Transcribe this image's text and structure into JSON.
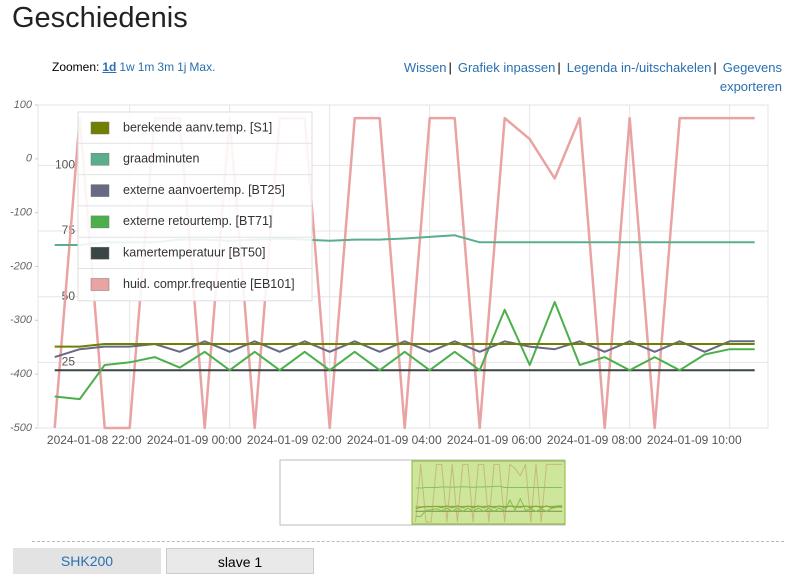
{
  "header": {
    "title": "Geschiedenis"
  },
  "zoom": {
    "label": "Zoomen:",
    "options": [
      "1d",
      "1w",
      "1m",
      "3m",
      "1j",
      "Max."
    ]
  },
  "actions": {
    "items": [
      "Wissen",
      "Grafiek inpassen",
      "Legenda in-/uitschakelen",
      "Gegevens exporteren"
    ],
    "separator": "|"
  },
  "chart_data": {
    "type": "line",
    "x": [
      "2024-01-08 20:30",
      "2024-01-08 21:00",
      "2024-01-08 21:30",
      "2024-01-08 22:00",
      "2024-01-08 22:30",
      "2024-01-08 23:00",
      "2024-01-08 23:30",
      "2024-01-09 00:00",
      "2024-01-09 00:30",
      "2024-01-09 01:00",
      "2024-01-09 01:30",
      "2024-01-09 02:00",
      "2024-01-09 02:30",
      "2024-01-09 03:00",
      "2024-01-09 03:30",
      "2024-01-09 04:00",
      "2024-01-09 04:30",
      "2024-01-09 05:00",
      "2024-01-09 05:30",
      "2024-01-09 06:00",
      "2024-01-09 06:30",
      "2024-01-09 07:00",
      "2024-01-09 07:30",
      "2024-01-09 08:00",
      "2024-01-09 08:30",
      "2024-01-09 09:00",
      "2024-01-09 09:30",
      "2024-01-09 10:00",
      "2024-01-09 10:30"
    ],
    "xlim": [
      "2024-01-08 20:10",
      "2024-01-09 10:46"
    ],
    "xticks": [
      "2024-01-08 22:00",
      "2024-01-09 00:00",
      "2024-01-09 02:00",
      "2024-01-09 04:00",
      "2024-01-09 06:00",
      "2024-01-09 08:00",
      "2024-01-09 10:00"
    ],
    "ylim": [
      -500,
      100
    ],
    "yticks": [
      100,
      0,
      -100,
      -200,
      -300,
      -400,
      -500
    ],
    "y2lim": [
      0,
      123
    ],
    "y2ticks": [
      100,
      75,
      50,
      25
    ],
    "grid": true,
    "series": [
      {
        "name": "berekende aanv.temp. [S1]",
        "color": "#6f7f00",
        "axis": "y2",
        "values": [
          31,
          31,
          32,
          32,
          32,
          32,
          32,
          32,
          32,
          32,
          32,
          32,
          32,
          32,
          32,
          32,
          32,
          32,
          32,
          32,
          32,
          32,
          32,
          32,
          32,
          32,
          32,
          32,
          32
        ]
      },
      {
        "name": "graadminuten",
        "color": "#5aaf8a",
        "axis": "y",
        "values": [
          -160,
          -160,
          -155,
          -155,
          -155,
          -150,
          -150,
          -152,
          -150,
          -148,
          -150,
          -152,
          -150,
          -150,
          -148,
          -145,
          -142,
          -155,
          -155,
          -155,
          -155,
          -155,
          -155,
          -155,
          -155,
          -155,
          -155,
          -155,
          -155
        ]
      },
      {
        "name": "externe aanvoertemp. [BT25]",
        "color": "#666a85",
        "axis": "y2",
        "values": [
          27,
          30,
          31,
          31,
          32,
          29,
          33,
          29,
          33,
          29,
          33,
          29,
          33,
          29,
          33,
          29,
          33,
          29,
          33,
          31,
          30,
          33,
          29,
          33,
          29,
          33,
          29,
          33,
          33
        ]
      },
      {
        "name": "externe retourtemp. [BT71]",
        "color": "#4bb04b",
        "axis": "y2",
        "values": [
          12,
          11,
          24,
          25,
          27,
          23,
          29,
          22,
          29,
          22,
          29,
          22,
          29,
          22,
          29,
          22,
          29,
          22,
          45,
          24,
          48,
          24,
          27,
          22,
          27,
          22,
          28,
          30,
          30
        ]
      },
      {
        "name": "kamertemperatuur [BT50]",
        "color": "#3a4545",
        "axis": "y2",
        "values": [
          22,
          22,
          22,
          22,
          22,
          22,
          22,
          22,
          22,
          22,
          22,
          22,
          22,
          22,
          22,
          22,
          22,
          22,
          22,
          22,
          22,
          22,
          22,
          22,
          22,
          22,
          22,
          22,
          22
        ]
      },
      {
        "name": "huid. compr.frequentie [EB101]",
        "color": "#e9a3a3",
        "axis": "y2",
        "values": [
          0,
          118,
          0,
          0,
          118,
          118,
          0,
          118,
          0,
          118,
          118,
          0,
          118,
          118,
          0,
          118,
          118,
          0,
          118,
          110,
          95,
          118,
          0,
          118,
          0,
          118,
          118,
          118,
          118
        ]
      }
    ]
  },
  "tabs": [
    "SHK200",
    "slave 1"
  ]
}
